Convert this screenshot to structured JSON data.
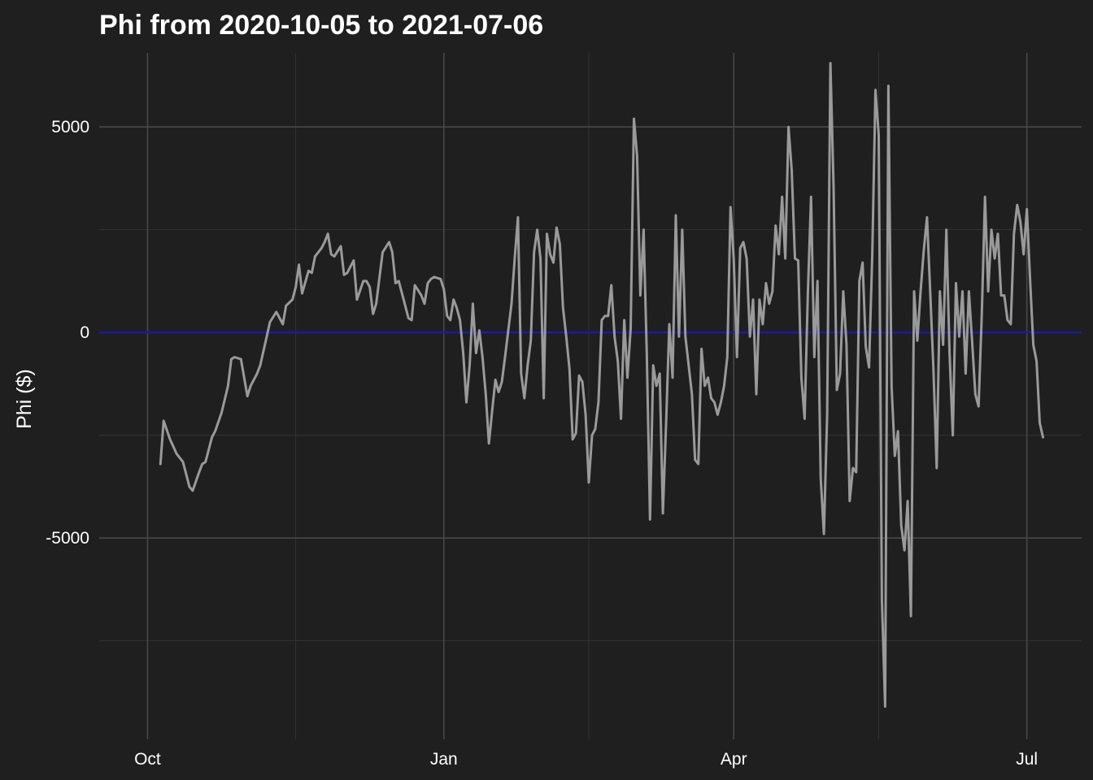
{
  "chart_data": {
    "type": "line",
    "title": "Phi from 2020-10-05 to 2021-07-06",
    "xlabel": "",
    "ylabel": "Phi ($)",
    "xlim": [
      "2020-09-16",
      "2021-07-18"
    ],
    "ylim": [
      -9800,
      7000
    ],
    "x_ticks": [
      {
        "date": "2020-10-01",
        "label": "Oct"
      },
      {
        "date": "2021-01-01",
        "label": "Jan"
      },
      {
        "date": "2021-04-01",
        "label": "Apr"
      },
      {
        "date": "2021-07-01",
        "label": "Jul"
      }
    ],
    "x_minor_ticks": [
      "2020-11-16",
      "2021-02-15",
      "2021-05-16"
    ],
    "y_ticks": [
      -5000,
      0,
      5000
    ],
    "y_minor_ticks": [
      -7500,
      -2500,
      2500
    ],
    "grid": true,
    "reference_line": {
      "y": 0,
      "color": "#1a1aa8"
    },
    "series": [
      {
        "color": "#9a9a9a",
        "points": [
          [
            "2020-10-05",
            -3200
          ],
          [
            "2020-10-06",
            -2150
          ],
          [
            "2020-10-08",
            -2600
          ],
          [
            "2020-10-10",
            -2950
          ],
          [
            "2020-10-12",
            -3150
          ],
          [
            "2020-10-14",
            -3750
          ],
          [
            "2020-10-15",
            -3850
          ],
          [
            "2020-10-17",
            -3400
          ],
          [
            "2020-10-18",
            -3200
          ],
          [
            "2020-10-19",
            -3150
          ],
          [
            "2020-10-21",
            -2550
          ],
          [
            "2020-10-22",
            -2400
          ],
          [
            "2020-10-24",
            -1950
          ],
          [
            "2020-10-26",
            -1300
          ],
          [
            "2020-10-27",
            -650
          ],
          [
            "2020-10-28",
            -600
          ],
          [
            "2020-10-30",
            -650
          ],
          [
            "2020-11-01",
            -1550
          ],
          [
            "2020-11-02",
            -1300
          ],
          [
            "2020-11-04",
            -1000
          ],
          [
            "2020-11-05",
            -800
          ],
          [
            "2020-11-07",
            -100
          ],
          [
            "2020-11-08",
            250
          ],
          [
            "2020-11-10",
            500
          ],
          [
            "2020-11-12",
            200
          ],
          [
            "2020-11-13",
            650
          ],
          [
            "2020-11-15",
            800
          ],
          [
            "2020-11-16",
            1100
          ],
          [
            "2020-11-17",
            1650
          ],
          [
            "2020-11-18",
            950
          ],
          [
            "2020-11-20",
            1500
          ],
          [
            "2020-11-21",
            1450
          ],
          [
            "2020-11-22",
            1850
          ],
          [
            "2020-11-24",
            2050
          ],
          [
            "2020-11-25",
            2200
          ],
          [
            "2020-11-26",
            2400
          ],
          [
            "2020-11-27",
            1900
          ],
          [
            "2020-11-28",
            1850
          ],
          [
            "2020-11-30",
            2100
          ],
          [
            "2020-12-01",
            1400
          ],
          [
            "2020-12-02",
            1450
          ],
          [
            "2020-12-03",
            1600
          ],
          [
            "2020-12-04",
            1750
          ],
          [
            "2020-12-05",
            800
          ],
          [
            "2020-12-07",
            1250
          ],
          [
            "2020-12-08",
            1250
          ],
          [
            "2020-12-09",
            1100
          ],
          [
            "2020-12-10",
            450
          ],
          [
            "2020-12-11",
            700
          ],
          [
            "2020-12-13",
            1950
          ],
          [
            "2020-12-15",
            2200
          ],
          [
            "2020-12-16",
            1950
          ],
          [
            "2020-12-17",
            1200
          ],
          [
            "2020-12-18",
            1250
          ],
          [
            "2020-12-20",
            650
          ],
          [
            "2020-12-21",
            350
          ],
          [
            "2020-12-22",
            300
          ],
          [
            "2020-12-23",
            1150
          ],
          [
            "2020-12-25",
            900
          ],
          [
            "2020-12-26",
            700
          ],
          [
            "2020-12-27",
            1200
          ],
          [
            "2020-12-28",
            1300
          ],
          [
            "2020-12-29",
            1350
          ],
          [
            "2020-12-31",
            1300
          ],
          [
            "2021-01-01",
            1050
          ],
          [
            "2021-01-02",
            400
          ],
          [
            "2021-01-03",
            300
          ],
          [
            "2021-01-04",
            800
          ],
          [
            "2021-01-05",
            600
          ],
          [
            "2021-01-06",
            300
          ],
          [
            "2021-01-07",
            -500
          ],
          [
            "2021-01-08",
            -1700
          ],
          [
            "2021-01-09",
            -800
          ],
          [
            "2021-01-10",
            700
          ],
          [
            "2021-01-11",
            -500
          ],
          [
            "2021-01-12",
            50
          ],
          [
            "2021-01-13",
            -600
          ],
          [
            "2021-01-14",
            -1500
          ],
          [
            "2021-01-15",
            -2700
          ],
          [
            "2021-01-16",
            -1900
          ],
          [
            "2021-01-17",
            -1150
          ],
          [
            "2021-01-18",
            -1450
          ],
          [
            "2021-01-19",
            -1200
          ],
          [
            "2021-01-20",
            -600
          ],
          [
            "2021-01-22",
            700
          ],
          [
            "2021-01-23",
            1800
          ],
          [
            "2021-01-24",
            2800
          ],
          [
            "2021-01-25",
            -1000
          ],
          [
            "2021-01-26",
            -1600
          ],
          [
            "2021-01-27",
            -800
          ],
          [
            "2021-01-28",
            -200
          ],
          [
            "2021-01-29",
            1950
          ],
          [
            "2021-01-30",
            2500
          ],
          [
            "2021-01-31",
            1800
          ],
          [
            "2021-02-01",
            -1600
          ],
          [
            "2021-02-02",
            2400
          ],
          [
            "2021-02-03",
            1900
          ],
          [
            "2021-02-04",
            1700
          ],
          [
            "2021-02-05",
            2550
          ],
          [
            "2021-02-06",
            2150
          ],
          [
            "2021-02-07",
            600
          ],
          [
            "2021-02-08",
            -100
          ],
          [
            "2021-02-09",
            -900
          ],
          [
            "2021-02-10",
            -2600
          ],
          [
            "2021-02-11",
            -2450
          ],
          [
            "2021-02-12",
            -1050
          ],
          [
            "2021-02-13",
            -1200
          ],
          [
            "2021-02-14",
            -2000
          ],
          [
            "2021-02-15",
            -3650
          ],
          [
            "2021-02-16",
            -2500
          ],
          [
            "2021-02-17",
            -2350
          ],
          [
            "2021-02-18",
            -1700
          ],
          [
            "2021-02-19",
            300
          ],
          [
            "2021-02-20",
            400
          ],
          [
            "2021-02-21",
            400
          ],
          [
            "2021-02-22",
            1150
          ],
          [
            "2021-02-23",
            -100
          ],
          [
            "2021-02-24",
            -700
          ],
          [
            "2021-02-25",
            -2100
          ],
          [
            "2021-02-26",
            300
          ],
          [
            "2021-02-27",
            -1100
          ],
          [
            "2021-02-28",
            100
          ],
          [
            "2021-03-01",
            5200
          ],
          [
            "2021-03-02",
            4300
          ],
          [
            "2021-03-03",
            900
          ],
          [
            "2021-03-04",
            2500
          ],
          [
            "2021-03-05",
            -500
          ],
          [
            "2021-03-06",
            -4550
          ],
          [
            "2021-03-07",
            -800
          ],
          [
            "2021-03-08",
            -1300
          ],
          [
            "2021-03-09",
            -1000
          ],
          [
            "2021-03-10",
            -4400
          ],
          [
            "2021-03-11",
            -2200
          ],
          [
            "2021-03-12",
            200
          ],
          [
            "2021-03-13",
            -1100
          ],
          [
            "2021-03-14",
            2850
          ],
          [
            "2021-03-15",
            -100
          ],
          [
            "2021-03-16",
            2500
          ],
          [
            "2021-03-17",
            -100
          ],
          [
            "2021-03-19",
            -1500
          ],
          [
            "2021-03-20",
            -3100
          ],
          [
            "2021-03-21",
            -3200
          ],
          [
            "2021-03-22",
            -400
          ],
          [
            "2021-03-23",
            -1300
          ],
          [
            "2021-03-24",
            -1100
          ],
          [
            "2021-03-25",
            -1600
          ],
          [
            "2021-03-26",
            -1700
          ],
          [
            "2021-03-27",
            -2000
          ],
          [
            "2021-03-28",
            -1700
          ],
          [
            "2021-03-29",
            -1300
          ],
          [
            "2021-03-30",
            -600
          ],
          [
            "2021-03-31",
            3050
          ],
          [
            "2021-04-01",
            1800
          ],
          [
            "2021-04-02",
            -600
          ],
          [
            "2021-04-03",
            2050
          ],
          [
            "2021-04-04",
            2200
          ],
          [
            "2021-04-05",
            1800
          ],
          [
            "2021-04-06",
            -100
          ],
          [
            "2021-04-07",
            800
          ],
          [
            "2021-04-08",
            -1500
          ],
          [
            "2021-04-09",
            800
          ],
          [
            "2021-04-10",
            200
          ],
          [
            "2021-04-11",
            1200
          ],
          [
            "2021-04-12",
            700
          ],
          [
            "2021-04-13",
            1000
          ],
          [
            "2021-04-14",
            2600
          ],
          [
            "2021-04-15",
            1900
          ],
          [
            "2021-04-16",
            3300
          ],
          [
            "2021-04-17",
            1800
          ],
          [
            "2021-04-18",
            5000
          ],
          [
            "2021-04-19",
            3950
          ],
          [
            "2021-04-20",
            1800
          ],
          [
            "2021-04-21",
            1750
          ],
          [
            "2021-04-22",
            -1100
          ],
          [
            "2021-04-23",
            -2100
          ],
          [
            "2021-04-24",
            900
          ],
          [
            "2021-04-25",
            3300
          ],
          [
            "2021-04-26",
            -600
          ],
          [
            "2021-04-27",
            1250
          ],
          [
            "2021-04-28",
            -3550
          ],
          [
            "2021-04-29",
            -4900
          ],
          [
            "2021-04-30",
            -2000
          ],
          [
            "2021-05-01",
            6550
          ],
          [
            "2021-05-02",
            3550
          ],
          [
            "2021-05-03",
            -1400
          ],
          [
            "2021-05-04",
            -1000
          ],
          [
            "2021-05-05",
            1000
          ],
          [
            "2021-05-06",
            -300
          ],
          [
            "2021-05-07",
            -4100
          ],
          [
            "2021-05-08",
            -3300
          ],
          [
            "2021-05-09",
            -3400
          ],
          [
            "2021-05-10",
            1250
          ],
          [
            "2021-05-11",
            1700
          ],
          [
            "2021-05-12",
            -350
          ],
          [
            "2021-05-13",
            -850
          ],
          [
            "2021-05-14",
            1900
          ],
          [
            "2021-05-15",
            5900
          ],
          [
            "2021-05-16",
            4800
          ],
          [
            "2021-05-17",
            -6500
          ],
          [
            "2021-05-18",
            -9100
          ],
          [
            "2021-05-19",
            6000
          ],
          [
            "2021-05-20",
            -1300
          ],
          [
            "2021-05-21",
            -3000
          ],
          [
            "2021-05-22",
            -2400
          ],
          [
            "2021-05-23",
            -4700
          ],
          [
            "2021-05-24",
            -5300
          ],
          [
            "2021-05-25",
            -4100
          ],
          [
            "2021-05-26",
            -6900
          ],
          [
            "2021-05-27",
            1000
          ],
          [
            "2021-05-28",
            -200
          ],
          [
            "2021-05-29",
            1000
          ],
          [
            "2021-05-30",
            2000
          ],
          [
            "2021-05-31",
            2800
          ],
          [
            "2021-06-01",
            1000
          ],
          [
            "2021-06-02",
            -900
          ],
          [
            "2021-06-03",
            -3300
          ],
          [
            "2021-06-04",
            1000
          ],
          [
            "2021-06-05",
            -300
          ],
          [
            "2021-06-06",
            2500
          ],
          [
            "2021-06-07",
            -500
          ],
          [
            "2021-06-08",
            -2500
          ],
          [
            "2021-06-09",
            1200
          ],
          [
            "2021-06-10",
            -100
          ],
          [
            "2021-06-11",
            1000
          ],
          [
            "2021-06-12",
            -1000
          ],
          [
            "2021-06-13",
            1000
          ],
          [
            "2021-06-14",
            -200
          ],
          [
            "2021-06-15",
            -1500
          ],
          [
            "2021-06-16",
            -1800
          ],
          [
            "2021-06-17",
            400
          ],
          [
            "2021-06-18",
            3300
          ],
          [
            "2021-06-19",
            1000
          ],
          [
            "2021-06-20",
            2500
          ],
          [
            "2021-06-21",
            1800
          ],
          [
            "2021-06-22",
            2400
          ],
          [
            "2021-06-23",
            900
          ],
          [
            "2021-06-24",
            900
          ],
          [
            "2021-06-25",
            300
          ],
          [
            "2021-06-26",
            200
          ],
          [
            "2021-06-27",
            2400
          ],
          [
            "2021-06-28",
            3100
          ],
          [
            "2021-06-29",
            2700
          ],
          [
            "2021-06-30",
            1900
          ],
          [
            "2021-07-01",
            3000
          ],
          [
            "2021-07-02",
            1300
          ],
          [
            "2021-07-03",
            -300
          ],
          [
            "2021-07-04",
            -700
          ],
          [
            "2021-07-05",
            -2200
          ],
          [
            "2021-07-06",
            -2550
          ]
        ]
      }
    ]
  }
}
